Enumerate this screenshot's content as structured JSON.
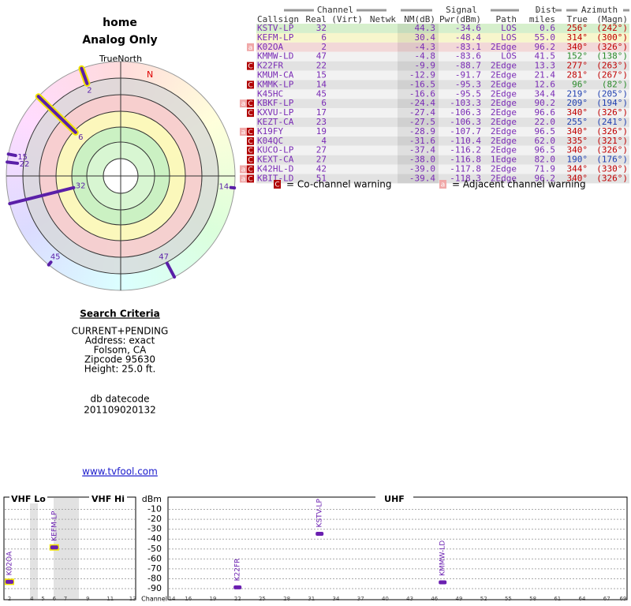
{
  "header": {
    "title": "home",
    "subtitle": "Analog Only"
  },
  "polar": {
    "true_north": "TrueNorth",
    "north": "N"
  },
  "table": {
    "groups": [
      "Channel",
      "Signal",
      "Dist",
      "Azimuth"
    ],
    "columns": [
      "Callsign",
      "Real",
      "(Virt)",
      "Netwk",
      "NM(dB)",
      "Pwr(dBm)",
      "Path",
      "miles",
      "True",
      "(Magn)"
    ],
    "rows": [
      {
        "callsign": "KSTV-LP",
        "real": "32",
        "nm": "44.3",
        "pwr": "-34.6",
        "path": "LOS",
        "miles": "0.6",
        "true": "256°",
        "magn": "(242°)",
        "bg": "#d6efcc",
        "az_color": "#c00000"
      },
      {
        "callsign": "KEFM-LP",
        "real": "6",
        "nm": "30.4",
        "pwr": "-48.4",
        "path": "LOS",
        "miles": "55.0",
        "true": "314°",
        "magn": "(300°)",
        "bg": "#f7f6cc",
        "az_color": "#c00000"
      },
      {
        "callsign": "K02OA",
        "real": "2",
        "nm": "-4.3",
        "pwr": "-83.1",
        "path": "2Edge",
        "miles": "96.2",
        "true": "340°",
        "magn": "(326°)",
        "bg": "#f2d8d8",
        "az_color": "#c00000",
        "warn": [
          "a"
        ]
      },
      {
        "callsign": "KMMW-LD",
        "real": "47",
        "nm": "-4.8",
        "pwr": "-83.6",
        "path": "LOS",
        "miles": "41.5",
        "true": "152°",
        "magn": "(138°)",
        "az_color": "#2a8a2a"
      },
      {
        "callsign": "K22FR",
        "real": "22",
        "nm": "-9.9",
        "pwr": "-88.7",
        "path": "2Edge",
        "miles": "13.3",
        "true": "277°",
        "magn": "(263°)",
        "az_color": "#c00000",
        "warn": [
          "C"
        ]
      },
      {
        "callsign": "KMUM-CA",
        "real": "15",
        "nm": "-12.9",
        "pwr": "-91.7",
        "path": "2Edge",
        "miles": "21.4",
        "true": "281°",
        "magn": "(267°)",
        "az_color": "#c00000"
      },
      {
        "callsign": "KMMK-LP",
        "real": "14",
        "nm": "-16.5",
        "pwr": "-95.3",
        "path": "2Edge",
        "miles": "12.6",
        "true": "96°",
        "magn": "(82°)",
        "az_color": "#2a8a2a",
        "warn": [
          "C"
        ]
      },
      {
        "callsign": "K45HC",
        "real": "45",
        "nm": "-16.6",
        "pwr": "-95.5",
        "path": "2Edge",
        "miles": "34.4",
        "true": "219°",
        "magn": "(205°)",
        "az_color": "#2040b0"
      },
      {
        "callsign": "KBKF-LP",
        "real": "6",
        "nm": "-24.4",
        "pwr": "-103.3",
        "path": "2Edge",
        "miles": "90.2",
        "true": "209°",
        "magn": "(194°)",
        "az_color": "#2040b0",
        "warn": [
          "a",
          "C"
        ]
      },
      {
        "callsign": "KXVU-LP",
        "real": "17",
        "nm": "-27.4",
        "pwr": "-106.3",
        "path": "2Edge",
        "miles": "96.6",
        "true": "340°",
        "magn": "(326°)",
        "az_color": "#c00000",
        "warn": [
          "C"
        ]
      },
      {
        "callsign": "KEZT-CA",
        "real": "23",
        "nm": "-27.5",
        "pwr": "-106.3",
        "path": "2Edge",
        "miles": "22.0",
        "true": "255°",
        "magn": "(241°)",
        "az_color": "#2040b0"
      },
      {
        "callsign": "K19FY",
        "real": "19",
        "nm": "-28.9",
        "pwr": "-107.7",
        "path": "2Edge",
        "miles": "96.5",
        "true": "340°",
        "magn": "(326°)",
        "az_color": "#c00000",
        "warn": [
          "a",
          "C"
        ]
      },
      {
        "callsign": "K04QC",
        "real": "4",
        "nm": "-31.6",
        "pwr": "-110.4",
        "path": "2Edge",
        "miles": "62.0",
        "true": "335°",
        "magn": "(321°)",
        "az_color": "#c00000",
        "warn": [
          "C"
        ]
      },
      {
        "callsign": "KUCO-LP",
        "real": "27",
        "nm": "-37.4",
        "pwr": "-116.2",
        "path": "2Edge",
        "miles": "96.5",
        "true": "340°",
        "magn": "(326°)",
        "az_color": "#c00000",
        "warn": [
          "C"
        ]
      },
      {
        "callsign": "KEXT-CA",
        "real": "27",
        "nm": "-38.0",
        "pwr": "-116.8",
        "path": "1Edge",
        "miles": "82.0",
        "true": "190°",
        "magn": "(176°)",
        "az_color": "#2040b0",
        "warn": [
          "C"
        ]
      },
      {
        "callsign": "K42HL-D",
        "real": "42",
        "nm": "-39.0",
        "pwr": "-117.8",
        "path": "2Edge",
        "miles": "71.9",
        "true": "344°",
        "magn": "(330°)",
        "az_color": "#c00000",
        "warn": [
          "a",
          "C"
        ]
      },
      {
        "callsign": "KBIT-LD",
        "real": "51",
        "nm": "-39.4",
        "pwr": "-118.3",
        "path": "2Edge",
        "miles": "96.2",
        "true": "340°",
        "magn": "(326°)",
        "az_color": "#c00000",
        "warn": [
          "a",
          "C"
        ]
      }
    ]
  },
  "legend": [
    {
      "icon": "C",
      "text": "= Co-channel warning",
      "color": "#b00000"
    },
    {
      "icon": "a",
      "text": "= Adjacent channel warning",
      "color": "#f0a8a8"
    }
  ],
  "search": {
    "title": "Search Criteria",
    "lines": [
      "CURRENT+PENDING",
      "Address: exact",
      "Folsom, CA",
      "Zipcode 95630",
      "Height: 25.0 ft."
    ],
    "datecode_label": "db datecode",
    "datecode": "201109020132",
    "link": "www.tvfool.com"
  },
  "spectrum": {
    "bands": [
      "VHF Lo",
      "VHF Hi",
      "UHF"
    ],
    "y_label": "dBm",
    "x_label": "Channel",
    "ylim": [
      0,
      -90
    ],
    "yticks": [
      -10,
      -20,
      -30,
      -40,
      -50,
      -60,
      -70,
      -80,
      -90
    ],
    "xticks": [
      2,
      4,
      5,
      6,
      7,
      9,
      11,
      13,
      14,
      16,
      19,
      22,
      25,
      28,
      31,
      34,
      37,
      40,
      43,
      46,
      49,
      52,
      55,
      58,
      61,
      64,
      67,
      69
    ],
    "color": "#6a1fb0"
  }
}
